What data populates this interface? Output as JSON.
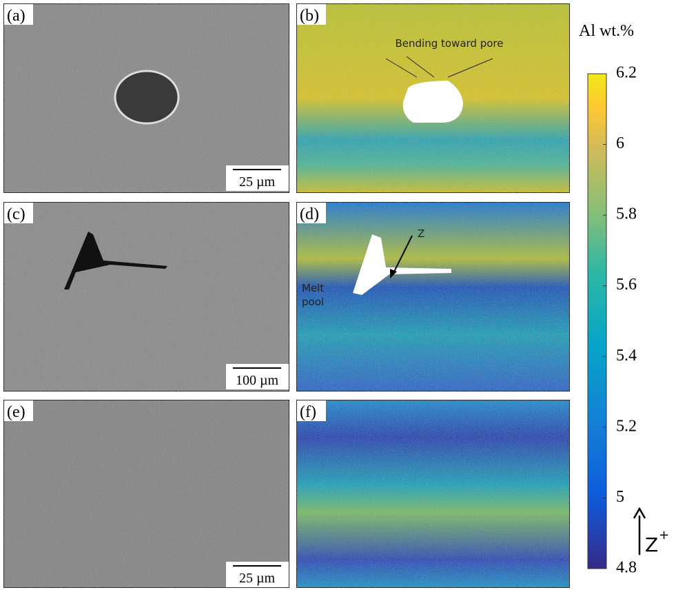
{
  "panels": [
    {
      "label": "(a)",
      "scale_bar": "25 µm"
    },
    {
      "label": "(b)",
      "annotation": "Bending toward pore"
    },
    {
      "label": "(c)",
      "scale_bar": "100 µm"
    },
    {
      "label": "(d)",
      "annotation": "Z",
      "melt_pool": [
        "Melt",
        "pool"
      ]
    },
    {
      "label": "(e)",
      "scale_bar": "25 µm"
    },
    {
      "label": "(f)"
    }
  ],
  "colorbar": {
    "title": "Al wt.%",
    "lim": [
      4.8,
      6.2
    ],
    "ticks": [
      4.8,
      5,
      5.2,
      5.4,
      5.6,
      5.8,
      6,
      6.2
    ],
    "direction_label": "Z",
    "direction_sup": "+"
  }
}
